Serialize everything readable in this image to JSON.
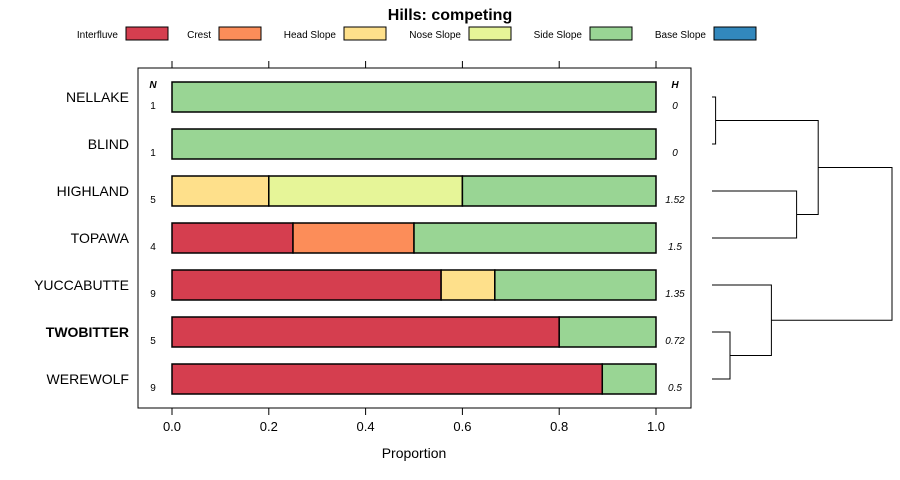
{
  "chart_data": {
    "type": "bar",
    "orientation": "horizontal",
    "stacked": true,
    "title": "Hills: competing",
    "xlabel": "Proportion",
    "ylabel": "",
    "xlim": [
      0,
      1
    ],
    "x_ticks": [
      "0.0",
      "0.2",
      "0.4",
      "0.6",
      "0.8",
      "1.0"
    ],
    "x_tick_values": [
      0,
      0.2,
      0.4,
      0.6,
      0.8,
      1.0
    ],
    "n_header": "N",
    "h_header": "H",
    "legend_position": "top",
    "legend": [
      {
        "name": "Interfluve",
        "color": "#D53E4F"
      },
      {
        "name": "Crest",
        "color": "#FC8D59"
      },
      {
        "name": "Head Slope",
        "color": "#FEE08B"
      },
      {
        "name": "Nose Slope",
        "color": "#E6F598"
      },
      {
        "name": "Side Slope",
        "color": "#99D594"
      },
      {
        "name": "Base Slope",
        "color": "#3288BD"
      }
    ],
    "categories": [
      "NELLAKE",
      "BLIND",
      "HIGHLAND",
      "TOPAWA",
      "YUCCABUTTE",
      "TWOBITTER",
      "WEREWOLF"
    ],
    "highlighted_category": "TWOBITTER",
    "n_values": [
      "1",
      "1",
      "5",
      "4",
      "9",
      "5",
      "9"
    ],
    "h_values": [
      "0",
      "0",
      "1.52",
      "1.5",
      "1.35",
      "0.72",
      "0.5"
    ],
    "series": [
      {
        "name": "Interfluve",
        "values": [
          0,
          0,
          0,
          0.25,
          0.556,
          0.8,
          0.889
        ]
      },
      {
        "name": "Crest",
        "values": [
          0,
          0,
          0,
          0.25,
          0,
          0,
          0
        ]
      },
      {
        "name": "Head Slope",
        "values": [
          0,
          0,
          0.2,
          0,
          0.111,
          0,
          0
        ]
      },
      {
        "name": "Nose Slope",
        "values": [
          0,
          0,
          0.4,
          0,
          0,
          0,
          0
        ]
      },
      {
        "name": "Side Slope",
        "values": [
          1,
          1,
          0.4,
          0.5,
          0.333,
          0.2,
          0.111
        ]
      },
      {
        "name": "Base Slope",
        "values": [
          0,
          0,
          0,
          0,
          0,
          0,
          0
        ]
      }
    ],
    "dendrogram": {
      "leaf_order": [
        "NELLAKE",
        "BLIND",
        "HIGHLAND",
        "TOPAWA",
        "YUCCABUTTE",
        "TWOBITTER",
        "WEREWOLF"
      ],
      "merges": [
        {
          "left": "NELLAKE",
          "right": "BLIND",
          "height": 0.02
        },
        {
          "left": "HIGHLAND",
          "right": "TOPAWA",
          "height": 0.47
        },
        {
          "left": "NELLAKE+BLIND",
          "right": "HIGHLAND+TOPAWA",
          "height": 0.59
        },
        {
          "left": "TWOBITTER",
          "right": "WEREWOLF",
          "height": 0.1
        },
        {
          "left": "YUCCABUTTE",
          "right": "TWOBITTER+WEREWOLF",
          "height": 0.33
        },
        {
          "left": "NELLAKE+BLIND+HIGHLAND+TOPAWA",
          "right": "YUCCABUTTE+TWOBITTER+WEREWOLF",
          "height": 1.0
        }
      ]
    }
  }
}
